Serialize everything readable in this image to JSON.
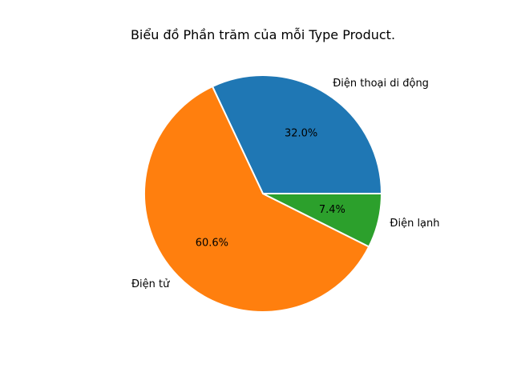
{
  "chart_data": {
    "type": "pie",
    "title": "Biểu đồ Phần trăm của mỗi Type Product.",
    "categories": [
      "Điện thoại di động",
      "Điện tử",
      "Điện lạnh"
    ],
    "values": [
      32.0,
      60.6,
      7.4
    ],
    "percent_labels": [
      "32.0%",
      "60.6%",
      "7.4%"
    ],
    "colors": [
      "#1f77b4",
      "#ff7f0e",
      "#2ca02c"
    ],
    "start_angle_deg": 0,
    "direction": "counterclockwise",
    "edge_color": "#ffffff",
    "legend": "none"
  }
}
